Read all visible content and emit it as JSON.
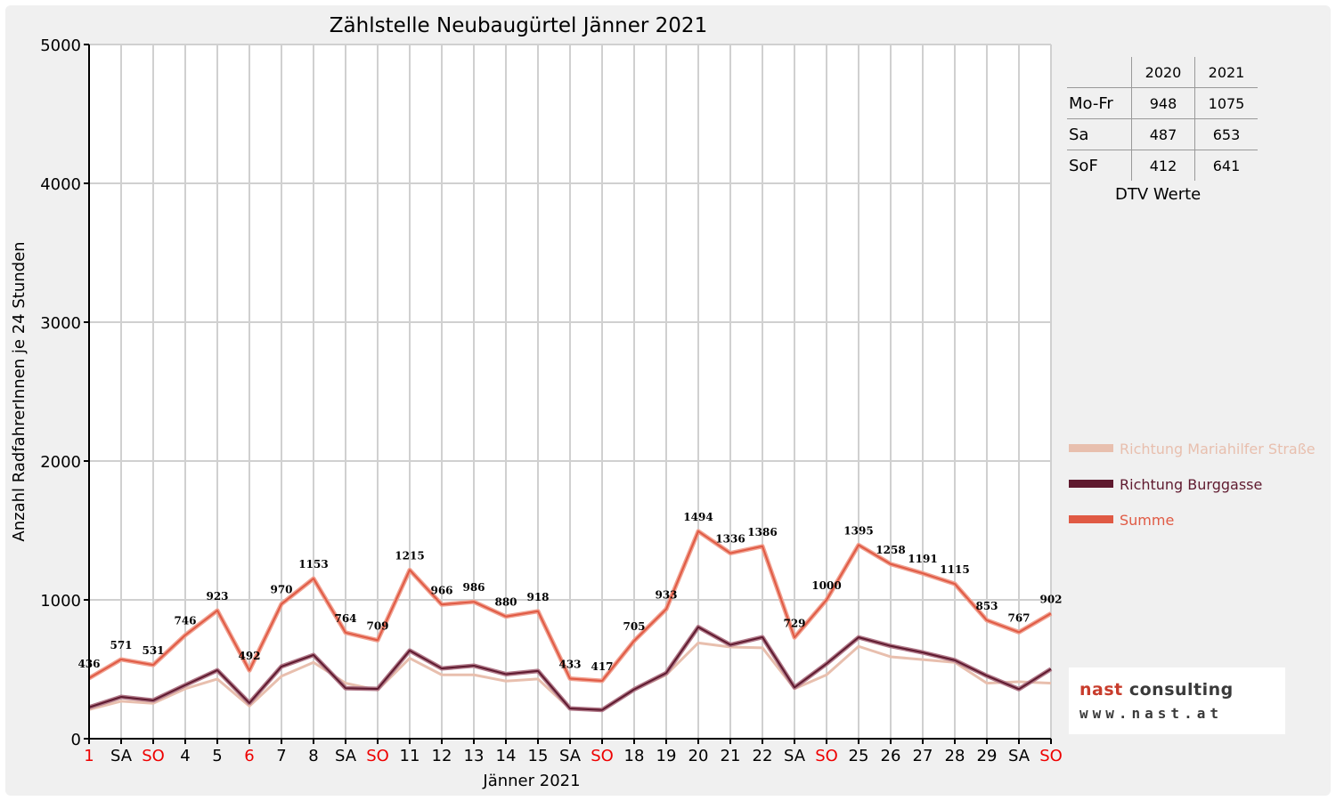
{
  "colors": {
    "mariahilfer": "#e8bfae",
    "burggasse": "#5f1a2f",
    "summe": "#e05a44",
    "weekend_tick": "#ee0000",
    "grid": "#d0d0d0"
  },
  "chart_data": {
    "type": "line",
    "title": "Zählstelle Neubaugürtel Jänner 2021",
    "xlabel": "Jänner 2021",
    "ylabel": "Anzahl RadfahrerInnen je 24 Stunden",
    "ylim": [
      0,
      5000
    ],
    "yticks": [
      0,
      1000,
      2000,
      3000,
      4000,
      5000
    ],
    "grid": true,
    "legend_position": "right",
    "categories": [
      "1",
      "SA",
      "SO",
      "4",
      "5",
      "6",
      "7",
      "8",
      "SA",
      "SO",
      "11",
      "12",
      "13",
      "14",
      "15",
      "SA",
      "SO",
      "18",
      "19",
      "20",
      "21",
      "22",
      "SA",
      "SO",
      "25",
      "26",
      "27",
      "28",
      "29",
      "SA",
      "SO"
    ],
    "category_highlight": [
      true,
      false,
      true,
      false,
      false,
      true,
      false,
      false,
      false,
      true,
      false,
      false,
      false,
      false,
      false,
      false,
      true,
      false,
      false,
      false,
      false,
      false,
      false,
      true,
      false,
      false,
      false,
      false,
      false,
      false,
      true
    ],
    "series": [
      {
        "name": "Richtung Mariahilfer Straße",
        "color": "#e8bfae",
        "values": [
          210,
          270,
          255,
          360,
          430,
          235,
          450,
          550,
          400,
          350,
          580,
          460,
          460,
          415,
          430,
          215,
          210,
          350,
          460,
          690,
          660,
          655,
          360,
          460,
          665,
          590,
          570,
          550,
          400,
          410,
          400
        ]
      },
      {
        "name": "Richtung Burggasse",
        "color": "#5f1a2f",
        "values": [
          226,
          301,
          276,
          386,
          493,
          257,
          520,
          603,
          364,
          359,
          635,
          506,
          526,
          465,
          488,
          218,
          207,
          355,
          473,
          804,
          676,
          731,
          369,
          540,
          730,
          668,
          621,
          565,
          453,
          357,
          502
        ]
      },
      {
        "name": "Summe",
        "color": "#e05a44",
        "values": [
          436,
          571,
          531,
          746,
          923,
          492,
          970,
          1153,
          764,
          709,
          1215,
          966,
          986,
          880,
          918,
          433,
          417,
          705,
          933,
          1494,
          1336,
          1386,
          729,
          1000,
          1395,
          1258,
          1191,
          1115,
          853,
          767,
          902
        ]
      }
    ],
    "data_labels": [
      "436",
      "571",
      "531",
      "746",
      "923",
      "492",
      "970",
      "1153",
      "764",
      "709",
      "1215",
      "966",
      "986",
      "880",
      "918",
      "433",
      "417",
      "705",
      "933",
      "1494",
      "1336",
      "1386",
      "729",
      "1000",
      "1395",
      "1258",
      "1191",
      "1115",
      "853",
      "767",
      "902"
    ]
  },
  "dtv": {
    "headers": [
      "",
      "2020",
      "2021"
    ],
    "rows": [
      {
        "label": "Mo-Fr",
        "v2020": "948",
        "v2021": "1075"
      },
      {
        "label": "Sa",
        "v2020": "487",
        "v2021": "653"
      },
      {
        "label": "SoF",
        "v2020": "412",
        "v2021": "641"
      }
    ],
    "caption": "DTV Werte"
  },
  "logo": {
    "name_part1": "nast",
    "name_part2": " consulting",
    "url": "www.nast.at"
  }
}
